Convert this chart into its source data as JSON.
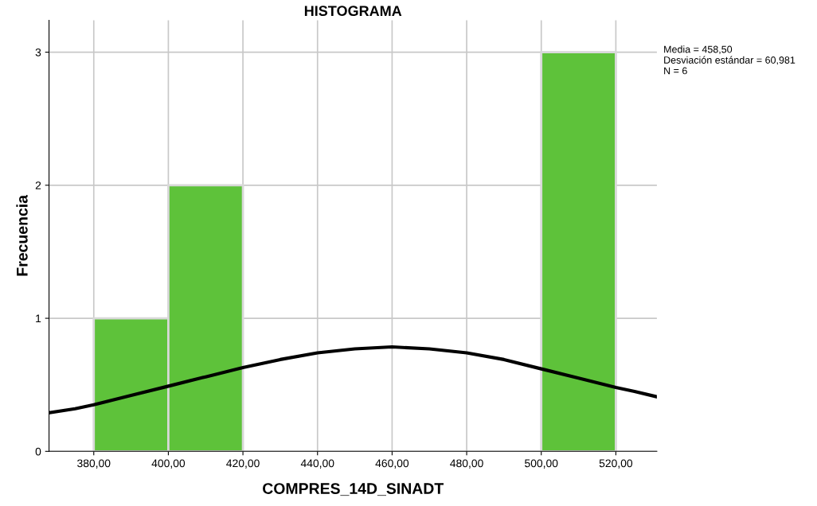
{
  "chart_data": {
    "type": "histogram",
    "title": "HISTOGRAMA",
    "xlabel": "COMPRES_14D_SINADT",
    "ylabel": "Frecuencia",
    "bins": [
      380,
      400,
      420,
      440,
      460,
      480,
      500,
      520
    ],
    "values": [
      1,
      2,
      0,
      0,
      0,
      0,
      3
    ],
    "color": "#5ec23a",
    "series": [
      {
        "type": "line",
        "color": "#000000",
        "x": [
          368,
          375,
          380,
          390,
          400,
          410,
          420,
          430,
          440,
          450,
          460,
          470,
          480,
          490,
          500,
          510,
          520,
          525,
          531
        ],
        "values": [
          0.29,
          0.32,
          0.35,
          0.42,
          0.49,
          0.56,
          0.63,
          0.69,
          0.74,
          0.77,
          0.785,
          0.77,
          0.74,
          0.69,
          0.62,
          0.55,
          0.48,
          0.45,
          0.41
        ]
      }
    ],
    "xlim": [
      368,
      531
    ],
    "ylim": [
      0,
      3.24
    ],
    "xticks": [
      {
        "value": 380,
        "label": "380,00"
      },
      {
        "value": 400,
        "label": "400,00"
      },
      {
        "value": 420,
        "label": "420,00"
      },
      {
        "value": 440,
        "label": "440,00"
      },
      {
        "value": 460,
        "label": "460,00"
      },
      {
        "value": 480,
        "label": "480,00"
      },
      {
        "value": 500,
        "label": "500,00"
      },
      {
        "value": 520,
        "label": "520,00"
      }
    ],
    "yticks": [
      0,
      1,
      2,
      3
    ],
    "grid": true,
    "annotations": [
      "Media = 458,50\nDesviación estándar = 60,981\nN = 6"
    ]
  }
}
